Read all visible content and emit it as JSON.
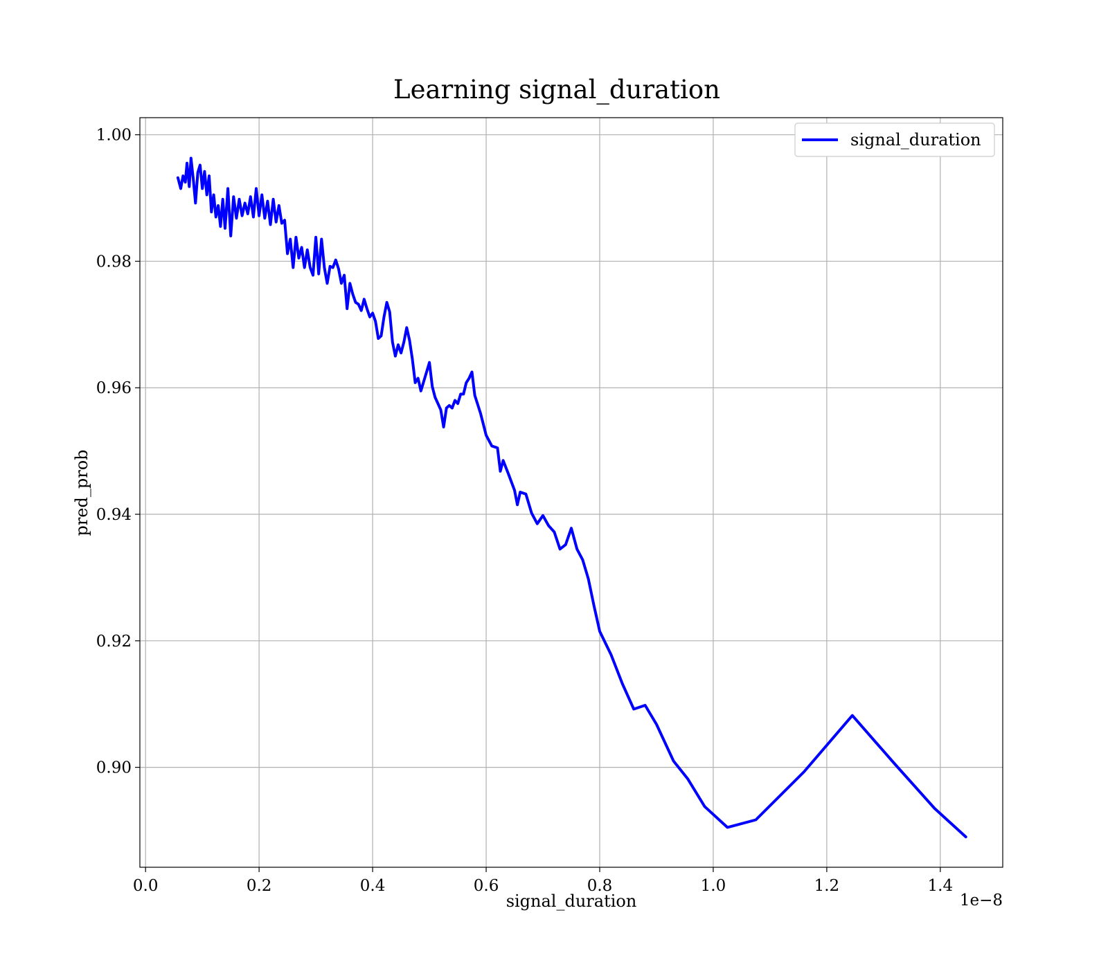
{
  "chart_data": {
    "type": "line",
    "title": "Learning signal_duration",
    "xlabel": "signal_duration",
    "ylabel": "pred_prob",
    "x_offset_label": "1e−8",
    "xlim": [
      -0.01,
      1.51
    ],
    "ylim": [
      0.8842,
      1.0027
    ],
    "xticks": [
      0.0,
      0.2,
      0.4,
      0.6,
      0.8,
      1.0,
      1.2,
      1.4
    ],
    "xtick_labels": [
      "0.0",
      "0.2",
      "0.4",
      "0.6",
      "0.8",
      "1.0",
      "1.2",
      "1.4"
    ],
    "yticks": [
      0.9,
      0.92,
      0.94,
      0.96,
      0.98,
      1.0
    ],
    "ytick_labels": [
      "0.90",
      "0.92",
      "0.94",
      "0.96",
      "0.98",
      "1.00"
    ],
    "grid": true,
    "legend_position": "top-right",
    "series": [
      {
        "name": "signal_duration",
        "color": "#0000ff",
        "x": [
          0.057,
          0.062,
          0.066,
          0.07,
          0.073,
          0.077,
          0.08,
          0.084,
          0.088,
          0.092,
          0.096,
          0.1,
          0.104,
          0.108,
          0.112,
          0.116,
          0.12,
          0.124,
          0.128,
          0.132,
          0.136,
          0.14,
          0.145,
          0.15,
          0.155,
          0.16,
          0.165,
          0.17,
          0.175,
          0.18,
          0.185,
          0.19,
          0.195,
          0.2,
          0.205,
          0.21,
          0.215,
          0.22,
          0.225,
          0.23,
          0.235,
          0.24,
          0.245,
          0.25,
          0.255,
          0.26,
          0.265,
          0.27,
          0.275,
          0.28,
          0.285,
          0.29,
          0.295,
          0.3,
          0.305,
          0.31,
          0.315,
          0.32,
          0.325,
          0.33,
          0.335,
          0.34,
          0.345,
          0.35,
          0.355,
          0.36,
          0.365,
          0.37,
          0.375,
          0.38,
          0.385,
          0.39,
          0.395,
          0.4,
          0.405,
          0.41,
          0.415,
          0.42,
          0.425,
          0.43,
          0.435,
          0.44,
          0.445,
          0.45,
          0.455,
          0.46,
          0.465,
          0.47,
          0.475,
          0.48,
          0.485,
          0.49,
          0.495,
          0.5,
          0.505,
          0.51,
          0.515,
          0.52,
          0.525,
          0.53,
          0.535,
          0.54,
          0.545,
          0.55,
          0.555,
          0.56,
          0.565,
          0.57,
          0.575,
          0.58,
          0.59,
          0.6,
          0.61,
          0.62,
          0.625,
          0.63,
          0.64,
          0.65,
          0.655,
          0.66,
          0.67,
          0.68,
          0.69,
          0.7,
          0.71,
          0.72,
          0.73,
          0.74,
          0.75,
          0.76,
          0.77,
          0.78,
          0.79,
          0.8,
          0.82,
          0.84,
          0.86,
          0.88,
          0.9,
          0.93,
          0.955,
          0.985,
          1.025,
          1.075,
          1.16,
          1.245,
          1.32,
          1.39,
          1.445
        ],
        "y": [
          0.9932,
          0.9915,
          0.9935,
          0.9925,
          0.9955,
          0.9918,
          0.9963,
          0.993,
          0.9892,
          0.994,
          0.9952,
          0.9915,
          0.9942,
          0.9905,
          0.9935,
          0.9878,
          0.9905,
          0.987,
          0.9888,
          0.9855,
          0.9898,
          0.9852,
          0.9915,
          0.984,
          0.9902,
          0.9868,
          0.9898,
          0.9872,
          0.9892,
          0.9875,
          0.9902,
          0.987,
          0.9915,
          0.9872,
          0.9905,
          0.9868,
          0.9895,
          0.9858,
          0.9898,
          0.9862,
          0.9888,
          0.986,
          0.9865,
          0.9812,
          0.9835,
          0.979,
          0.9838,
          0.9805,
          0.9822,
          0.979,
          0.9818,
          0.979,
          0.9778,
          0.9838,
          0.978,
          0.9835,
          0.979,
          0.9765,
          0.9792,
          0.979,
          0.9802,
          0.9788,
          0.9765,
          0.9778,
          0.9725,
          0.9765,
          0.9748,
          0.9735,
          0.9732,
          0.9722,
          0.974,
          0.9725,
          0.9712,
          0.9718,
          0.9705,
          0.9678,
          0.9682,
          0.9712,
          0.9735,
          0.972,
          0.9672,
          0.965,
          0.9668,
          0.9655,
          0.9672,
          0.9695,
          0.9675,
          0.9645,
          0.9608,
          0.9615,
          0.9595,
          0.961,
          0.9625,
          0.964,
          0.9602,
          0.9585,
          0.9575,
          0.9565,
          0.9538,
          0.9568,
          0.9572,
          0.9568,
          0.958,
          0.9575,
          0.959,
          0.959,
          0.9608,
          0.9615,
          0.9625,
          0.9588,
          0.956,
          0.9525,
          0.9508,
          0.9505,
          0.9468,
          0.9485,
          0.9462,
          0.9438,
          0.9415,
          0.9435,
          0.9432,
          0.9402,
          0.9385,
          0.9398,
          0.9382,
          0.9372,
          0.9345,
          0.9352,
          0.9378,
          0.9345,
          0.9328,
          0.9298,
          0.9255,
          0.9215,
          0.9178,
          0.9132,
          0.9092,
          0.9098,
          0.9068,
          0.901,
          0.8982,
          0.8938,
          0.8905,
          0.8917,
          0.8993,
          0.9082,
          0.9005,
          0.8935,
          0.889
        ]
      }
    ]
  }
}
